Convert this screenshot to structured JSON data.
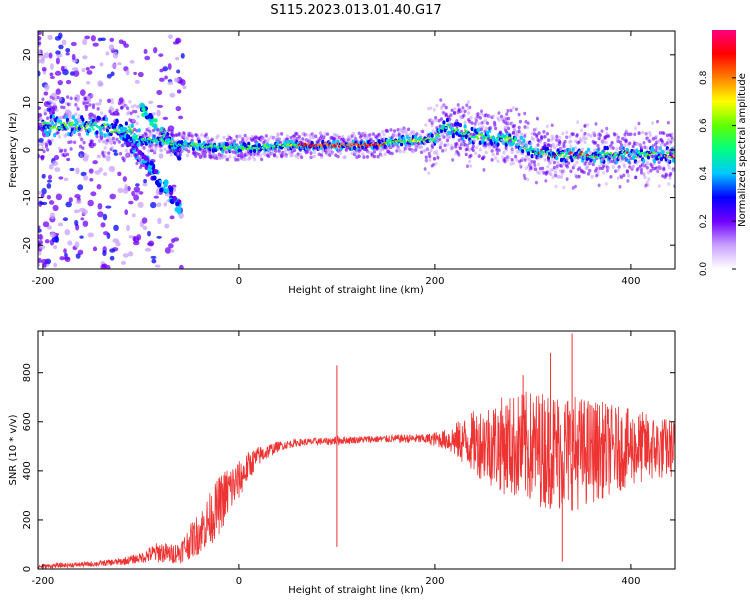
{
  "figure": {
    "title": "S115.2023.013.01.40.G17"
  },
  "chart_data": [
    {
      "type": "heatmap",
      "title": "S115.2023.013.01.40.G17",
      "xlabel": "Height of straight line (km)",
      "ylabel": "Frequency (Hz)",
      "xlim": [
        -205,
        445
      ],
      "ylim": [
        -25,
        25
      ],
      "x_ticks": [
        -200,
        0,
        200,
        400
      ],
      "y_ticks": [
        -20,
        -10,
        0,
        10,
        20
      ],
      "grid": false,
      "colorbar": {
        "label": "Normalized spectral amplitude",
        "range": [
          0,
          1
        ],
        "ticks": [
          0.0,
          0.2,
          0.4,
          0.6,
          0.8
        ],
        "colormap": [
          "#ffffff",
          "#c8a0ff",
          "#7000ff",
          "#0000ff",
          "#00c8ff",
          "#00ff80",
          "#60ff00",
          "#ffff00",
          "#ff8000",
          "#ff0000",
          "#ff0080"
        ]
      },
      "ridge": {
        "x": [
          -190,
          -150,
          -110,
          -100,
          -80,
          -60,
          -40,
          -20,
          0,
          20,
          40,
          60,
          80,
          100,
          120,
          140,
          160,
          180,
          200,
          210,
          240,
          280,
          300,
          320,
          360,
          400,
          440
        ],
        "y": [
          5,
          5,
          4,
          2,
          2,
          1,
          1,
          0.5,
          0.5,
          0.5,
          1,
          1,
          1,
          1,
          1,
          1,
          2,
          2,
          2,
          5,
          3,
          2,
          0,
          -1,
          -1,
          -1,
          -1
        ]
      }
    },
    {
      "type": "line",
      "xlabel": "Height of straight line (km)",
      "ylabel": "SNR (10 * v/v)",
      "xlim": [
        -205,
        445
      ],
      "ylim": [
        0,
        970
      ],
      "x_ticks": [
        -200,
        0,
        200,
        400
      ],
      "y_ticks": [
        0,
        200,
        400,
        600,
        800
      ],
      "color": "#ee3333",
      "grid": false,
      "envelope": {
        "x": [
          -205,
          -180,
          -150,
          -120,
          -100,
          -90,
          -80,
          -70,
          -60,
          -50,
          -40,
          -30,
          -20,
          -10,
          0,
          10,
          20,
          40,
          60,
          80,
          90,
          100,
          110,
          130,
          150,
          170,
          190,
          210,
          230,
          250,
          270,
          290,
          310,
          330,
          350,
          370,
          390,
          410,
          430,
          445
        ],
        "mid": [
          10,
          15,
          20,
          30,
          45,
          60,
          70,
          60,
          70,
          110,
          150,
          200,
          260,
          320,
          360,
          420,
          460,
          500,
          515,
          520,
          520,
          525,
          525,
          528,
          530,
          532,
          530,
          528,
          520,
          515,
          505,
          495,
          490,
          480,
          475,
          485,
          490,
          495,
          490,
          495
        ],
        "spread": [
          8,
          10,
          10,
          15,
          20,
          35,
          45,
          40,
          45,
          70,
          90,
          110,
          120,
          110,
          80,
          60,
          40,
          20,
          15,
          15,
          15,
          20,
          15,
          15,
          15,
          18,
          20,
          40,
          100,
          160,
          200,
          230,
          240,
          250,
          230,
          200,
          170,
          150,
          130,
          120
        ]
      },
      "peaks": [
        {
          "x": 100,
          "y": 830
        },
        {
          "x": 100,
          "y": 90
        },
        {
          "x": 340,
          "y": 960
        },
        {
          "x": 318,
          "y": 880
        },
        {
          "x": 290,
          "y": 790
        },
        {
          "x": 330,
          "y": 30
        }
      ]
    }
  ]
}
